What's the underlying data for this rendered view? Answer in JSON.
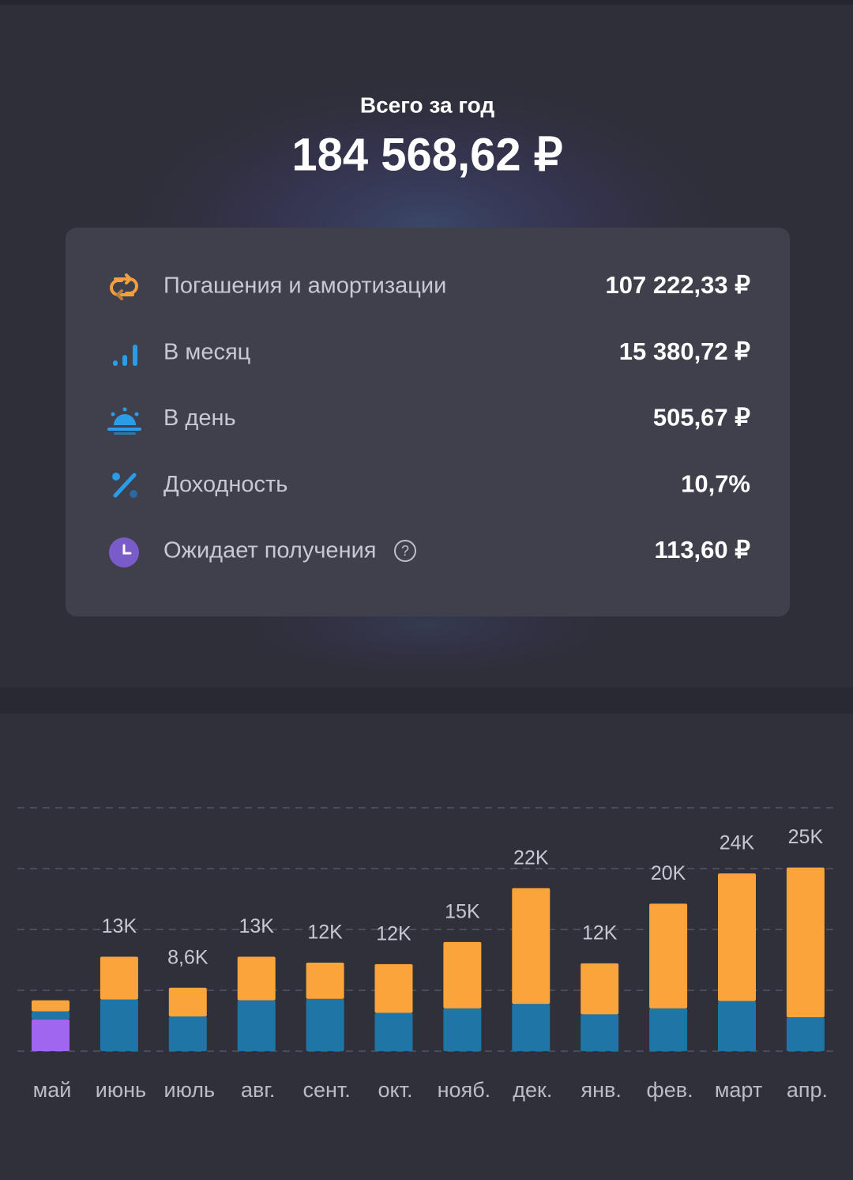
{
  "header": {
    "title": "Всего за год",
    "amount": "184 568,62 ₽"
  },
  "stats": [
    {
      "label": "Погашения и амортизации",
      "value": "107 222,33 ₽"
    },
    {
      "label": "В месяц",
      "value": "15 380,72 ₽"
    },
    {
      "label": "В день",
      "value": "505,67 ₽"
    },
    {
      "label": "Доходность",
      "value": "10,7%"
    },
    {
      "label": "Ожидает получения",
      "value": "113,60 ₽",
      "help_icon": "?"
    }
  ],
  "chart_data": {
    "type": "stacked_bar",
    "categories": [
      "май",
      "июнь",
      "июль",
      "авг.",
      "сент.",
      "окт.",
      "нояб.",
      "дек.",
      "янв.",
      "фев.",
      "март",
      "апр."
    ],
    "series": [
      {
        "color": "#a066f0",
        "values": [
          4300,
          null,
          null,
          null,
          null,
          null,
          null,
          null,
          null,
          null,
          null,
          null
        ]
      },
      {
        "color": "#1f76a6",
        "values": [
          1100,
          7000,
          4700,
          6900,
          7100,
          5200,
          5800,
          6400,
          5000,
          5800,
          6800,
          4600
        ]
      },
      {
        "color": "#fba43a",
        "values": [
          1500,
          5800,
          3900,
          5900,
          4900,
          6600,
          9000,
          15700,
          6900,
          14200,
          17300,
          20300
        ]
      }
    ],
    "totals": {
      "values": [
        null,
        12800,
        8600,
        12800,
        12000,
        11800,
        14800,
        22100,
        11900,
        20000,
        24100,
        24900
      ],
      "value_labels": [
        null,
        "13K",
        "8,6K",
        "13K",
        "12K",
        "12K",
        "15K",
        "22K",
        "12K",
        "20K",
        "24K",
        "25K"
      ]
    },
    "ylim": [
      0,
      33000
    ],
    "yticks": [
      0,
      8250,
      16500,
      24750,
      33000
    ],
    "grid": true
  }
}
